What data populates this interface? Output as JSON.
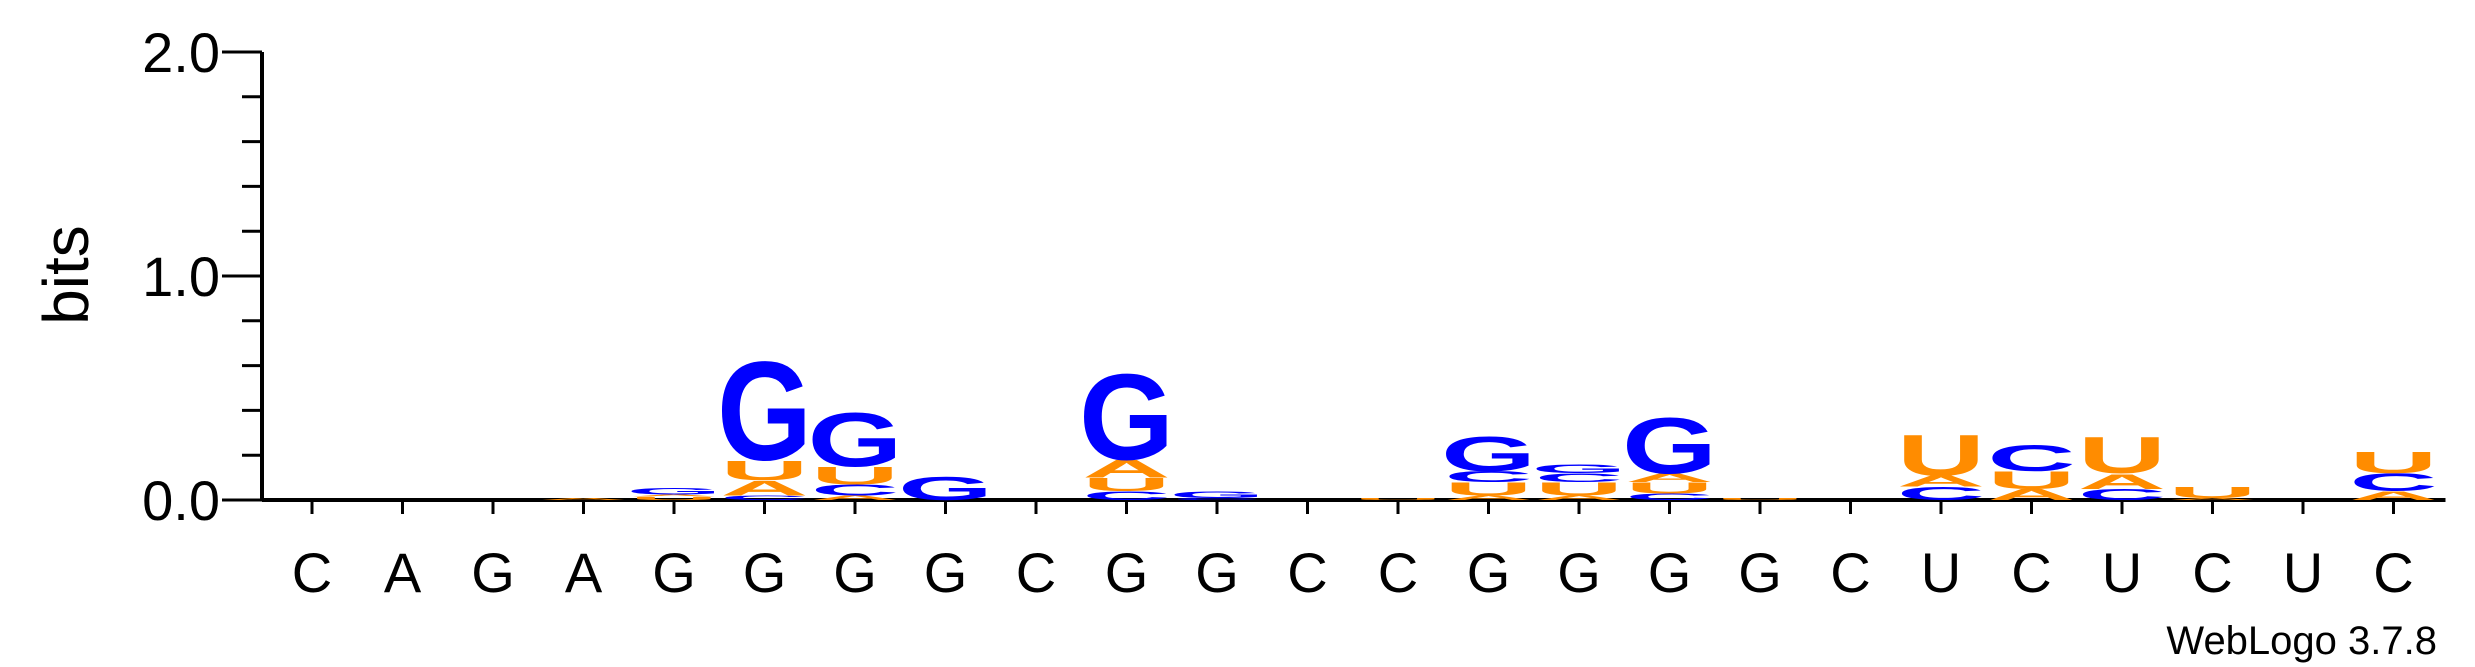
{
  "chart_data": {
    "type": "sequence-logo",
    "ylabel": "bits",
    "ylim": [
      0,
      2.0
    ],
    "yticks": [
      "0.0",
      "1.0",
      "2.0"
    ],
    "footer": "WebLogo 3.7.8",
    "colors": {
      "A": "#ff8c00",
      "U": "#ff8c00",
      "G": "#0000ff",
      "C": "#0000ff"
    },
    "x_labels": [
      "C",
      "A",
      "G",
      "A",
      "G",
      "G",
      "G",
      "G",
      "C",
      "G",
      "G",
      "C",
      "C",
      "G",
      "G",
      "G",
      "G",
      "C",
      "U",
      "C",
      "U",
      "C",
      "U",
      "C"
    ],
    "positions": [
      [],
      [],
      [],
      [
        {
          "letter": "A",
          "height": 0.01
        }
      ],
      [
        {
          "letter": "U",
          "height": 0.015
        },
        {
          "letter": "A",
          "height": 0.01
        },
        {
          "letter": "G",
          "height": 0.03
        }
      ],
      [
        {
          "letter": "C",
          "height": 0.02
        },
        {
          "letter": "A",
          "height": 0.07
        },
        {
          "letter": "U",
          "height": 0.09
        },
        {
          "letter": "G",
          "height": 0.46
        }
      ],
      [
        {
          "letter": "A",
          "height": 0.02
        },
        {
          "letter": "C",
          "height": 0.05
        },
        {
          "letter": "U",
          "height": 0.08
        },
        {
          "letter": "G",
          "height": 0.25
        }
      ],
      [
        {
          "letter": "G",
          "height": 0.11
        }
      ],
      [],
      [
        {
          "letter": "C",
          "height": 0.04
        },
        {
          "letter": "U",
          "height": 0.06
        },
        {
          "letter": "A",
          "height": 0.08
        },
        {
          "letter": "G",
          "height": 0.4
        }
      ],
      [
        {
          "letter": "C",
          "height": 0.01
        },
        {
          "letter": "G",
          "height": 0.03
        }
      ],
      [],
      [
        {
          "letter": "U",
          "height": 0.01
        }
      ],
      [
        {
          "letter": "A",
          "height": 0.02
        },
        {
          "letter": "U",
          "height": 0.06
        },
        {
          "letter": "C",
          "height": 0.05
        },
        {
          "letter": "G",
          "height": 0.16
        }
      ],
      [
        {
          "letter": "A",
          "height": 0.02
        },
        {
          "letter": "U",
          "height": 0.06
        },
        {
          "letter": "C",
          "height": 0.04
        },
        {
          "letter": "G",
          "height": 0.04
        }
      ],
      [
        {
          "letter": "C",
          "height": 0.03
        },
        {
          "letter": "U",
          "height": 0.05
        },
        {
          "letter": "A",
          "height": 0.04
        },
        {
          "letter": "G",
          "height": 0.26
        }
      ],
      [
        {
          "letter": "U",
          "height": 0.01
        }
      ],
      [],
      [
        {
          "letter": "C",
          "height": 0.06
        },
        {
          "letter": "A",
          "height": 0.05
        },
        {
          "letter": "U",
          "height": 0.19
        }
      ],
      [
        {
          "letter": "A",
          "height": 0.05
        },
        {
          "letter": "U",
          "height": 0.08
        },
        {
          "letter": "C",
          "height": 0.12
        }
      ],
      [
        {
          "letter": "C",
          "height": 0.05
        },
        {
          "letter": "A",
          "height": 0.07
        },
        {
          "letter": "U",
          "height": 0.17
        }
      ],
      [
        {
          "letter": "A",
          "height": 0.01
        },
        {
          "letter": "U",
          "height": 0.05
        }
      ],
      [],
      [
        {
          "letter": "A",
          "height": 0.04
        },
        {
          "letter": "C",
          "height": 0.08
        },
        {
          "letter": "U",
          "height": 0.1
        }
      ]
    ]
  }
}
